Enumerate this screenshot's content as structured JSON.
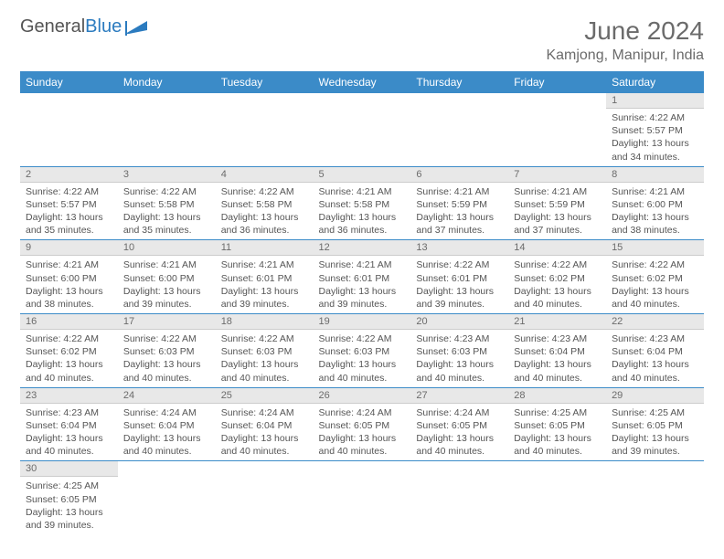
{
  "logo": {
    "name": "General",
    "suffix": "Blue"
  },
  "title": "June 2024",
  "location": "Kamjong, Manipur, India",
  "colors": {
    "header_bg": "#3b8bc8",
    "header_text": "#ffffff",
    "daynum_bg": "#e8e8e8",
    "rule": "#3b8bc8",
    "text": "#555555",
    "title": "#6b6b6b"
  },
  "weekdays": [
    "Sunday",
    "Monday",
    "Tuesday",
    "Wednesday",
    "Thursday",
    "Friday",
    "Saturday"
  ],
  "weeks": [
    [
      null,
      null,
      null,
      null,
      null,
      null,
      {
        "n": 1,
        "sr": "4:22 AM",
        "ss": "5:57 PM",
        "dl": "13 hours and 34 minutes."
      }
    ],
    [
      {
        "n": 2,
        "sr": "4:22 AM",
        "ss": "5:57 PM",
        "dl": "13 hours and 35 minutes."
      },
      {
        "n": 3,
        "sr": "4:22 AM",
        "ss": "5:58 PM",
        "dl": "13 hours and 35 minutes."
      },
      {
        "n": 4,
        "sr": "4:22 AM",
        "ss": "5:58 PM",
        "dl": "13 hours and 36 minutes."
      },
      {
        "n": 5,
        "sr": "4:21 AM",
        "ss": "5:58 PM",
        "dl": "13 hours and 36 minutes."
      },
      {
        "n": 6,
        "sr": "4:21 AM",
        "ss": "5:59 PM",
        "dl": "13 hours and 37 minutes."
      },
      {
        "n": 7,
        "sr": "4:21 AM",
        "ss": "5:59 PM",
        "dl": "13 hours and 37 minutes."
      },
      {
        "n": 8,
        "sr": "4:21 AM",
        "ss": "6:00 PM",
        "dl": "13 hours and 38 minutes."
      }
    ],
    [
      {
        "n": 9,
        "sr": "4:21 AM",
        "ss": "6:00 PM",
        "dl": "13 hours and 38 minutes."
      },
      {
        "n": 10,
        "sr": "4:21 AM",
        "ss": "6:00 PM",
        "dl": "13 hours and 39 minutes."
      },
      {
        "n": 11,
        "sr": "4:21 AM",
        "ss": "6:01 PM",
        "dl": "13 hours and 39 minutes."
      },
      {
        "n": 12,
        "sr": "4:21 AM",
        "ss": "6:01 PM",
        "dl": "13 hours and 39 minutes."
      },
      {
        "n": 13,
        "sr": "4:22 AM",
        "ss": "6:01 PM",
        "dl": "13 hours and 39 minutes."
      },
      {
        "n": 14,
        "sr": "4:22 AM",
        "ss": "6:02 PM",
        "dl": "13 hours and 40 minutes."
      },
      {
        "n": 15,
        "sr": "4:22 AM",
        "ss": "6:02 PM",
        "dl": "13 hours and 40 minutes."
      }
    ],
    [
      {
        "n": 16,
        "sr": "4:22 AM",
        "ss": "6:02 PM",
        "dl": "13 hours and 40 minutes."
      },
      {
        "n": 17,
        "sr": "4:22 AM",
        "ss": "6:03 PM",
        "dl": "13 hours and 40 minutes."
      },
      {
        "n": 18,
        "sr": "4:22 AM",
        "ss": "6:03 PM",
        "dl": "13 hours and 40 minutes."
      },
      {
        "n": 19,
        "sr": "4:22 AM",
        "ss": "6:03 PM",
        "dl": "13 hours and 40 minutes."
      },
      {
        "n": 20,
        "sr": "4:23 AM",
        "ss": "6:03 PM",
        "dl": "13 hours and 40 minutes."
      },
      {
        "n": 21,
        "sr": "4:23 AM",
        "ss": "6:04 PM",
        "dl": "13 hours and 40 minutes."
      },
      {
        "n": 22,
        "sr": "4:23 AM",
        "ss": "6:04 PM",
        "dl": "13 hours and 40 minutes."
      }
    ],
    [
      {
        "n": 23,
        "sr": "4:23 AM",
        "ss": "6:04 PM",
        "dl": "13 hours and 40 minutes."
      },
      {
        "n": 24,
        "sr": "4:24 AM",
        "ss": "6:04 PM",
        "dl": "13 hours and 40 minutes."
      },
      {
        "n": 25,
        "sr": "4:24 AM",
        "ss": "6:04 PM",
        "dl": "13 hours and 40 minutes."
      },
      {
        "n": 26,
        "sr": "4:24 AM",
        "ss": "6:05 PM",
        "dl": "13 hours and 40 minutes."
      },
      {
        "n": 27,
        "sr": "4:24 AM",
        "ss": "6:05 PM",
        "dl": "13 hours and 40 minutes."
      },
      {
        "n": 28,
        "sr": "4:25 AM",
        "ss": "6:05 PM",
        "dl": "13 hours and 40 minutes."
      },
      {
        "n": 29,
        "sr": "4:25 AM",
        "ss": "6:05 PM",
        "dl": "13 hours and 39 minutes."
      }
    ],
    [
      {
        "n": 30,
        "sr": "4:25 AM",
        "ss": "6:05 PM",
        "dl": "13 hours and 39 minutes."
      },
      null,
      null,
      null,
      null,
      null,
      null
    ]
  ],
  "labels": {
    "sunrise": "Sunrise:",
    "sunset": "Sunset:",
    "daylight": "Daylight:"
  }
}
